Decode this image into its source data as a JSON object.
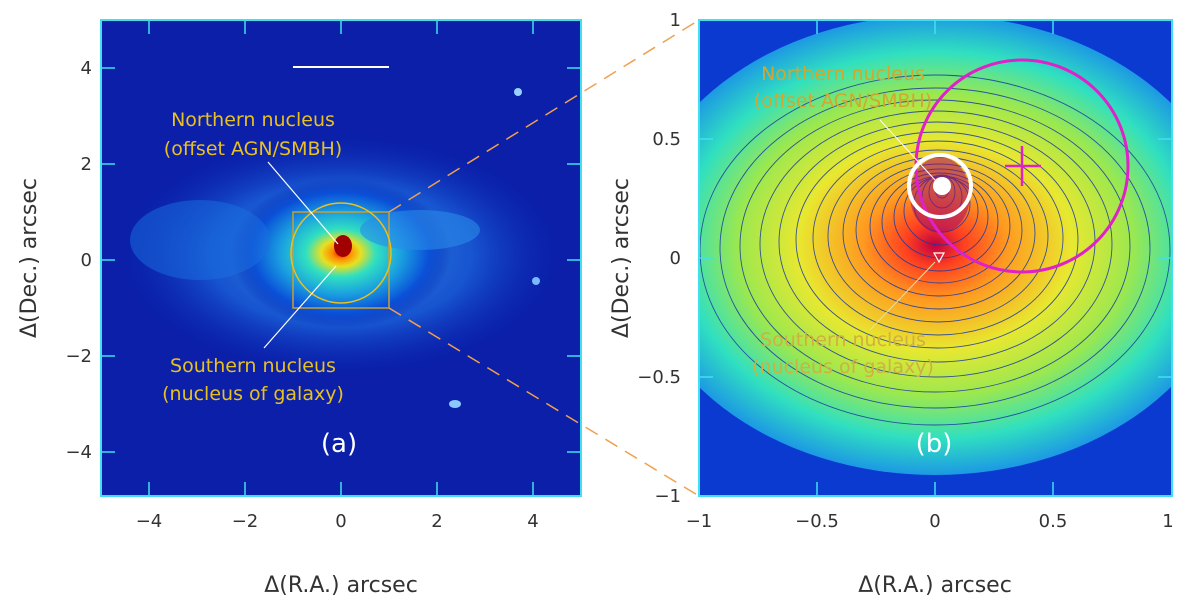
{
  "colors": {
    "annotation_yellow": "#e8c020",
    "annotation_orange": "#c8a030",
    "magenta": "#e020c8",
    "frame_cyan": "#40e0f0",
    "white": "#ffffff",
    "contour": "#1a3aa0"
  },
  "panel_a": {
    "label": "(a)",
    "north_label_line1": "Northern nucleus",
    "north_label_line2": "(offset AGN/SMBH)",
    "south_label_line1": "Southern nucleus",
    "south_label_line2": "(nucleus of galaxy)",
    "x_ticks": [
      "−4",
      "−2",
      "0",
      "2",
      "4"
    ],
    "y_ticks": [
      "4",
      "2",
      "0",
      "−2",
      "−4"
    ],
    "xlabel": "Δ(R.A.) arcsec",
    "ylabel": "Δ(Dec.) arcsec"
  },
  "panel_b": {
    "label": "(b)",
    "north_label_line1": "Northern nucleus",
    "north_label_line2": "(offset AGN/SMBH)",
    "south_label_line1": "Southern nucleus",
    "south_label_line2": "(nucleus of galaxy)",
    "x_ticks": [
      "−1",
      "−0.5",
      "0",
      "0.5",
      "1"
    ],
    "y_ticks": [
      "1",
      "0.5",
      "0",
      "−0.5",
      "−1"
    ],
    "xlabel": "Δ(R.A.) arcsec",
    "ylabel": "Δ(Dec.) arcsec"
  }
}
